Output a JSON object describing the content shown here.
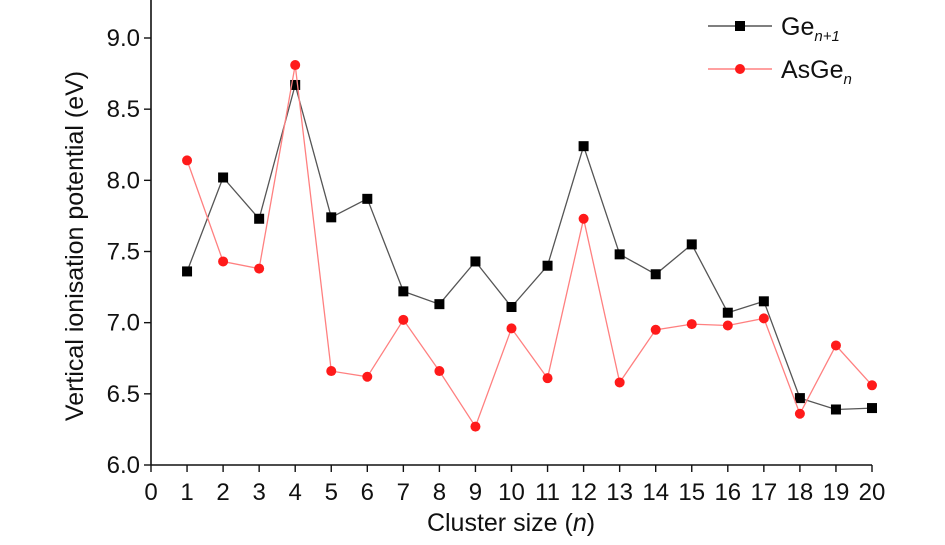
{
  "chart_data": {
    "type": "line",
    "xlabel": "Cluster size (",
    "xlabel_var": "n",
    "xlabel_end": ")",
    "ylabel": "Vertical  ionisation potential (eV)",
    "xlim": [
      0,
      20
    ],
    "ylim": [
      6.0,
      9.3
    ],
    "x_ticks": [
      "0",
      "1",
      "2",
      "3",
      "4",
      "5",
      "6",
      "7",
      "8",
      "9",
      "10",
      "11",
      "12",
      "13",
      "14",
      "15",
      "16",
      "17",
      "18",
      "19",
      "20"
    ],
    "y_ticks": [
      "6.0",
      "6.5",
      "7.0",
      "7.5",
      "8.0",
      "8.5",
      "9.0"
    ],
    "y_tick_values": [
      6.0,
      6.5,
      7.0,
      7.5,
      8.0,
      8.5,
      9.0
    ],
    "x": [
      1,
      2,
      3,
      4,
      5,
      6,
      7,
      8,
      9,
      10,
      11,
      12,
      13,
      14,
      15,
      16,
      17,
      18,
      19,
      20
    ],
    "legend_position": "top-right",
    "grid": false,
    "series": [
      {
        "name_base": "Ge",
        "name_sub": "n+1",
        "color": "#555555",
        "marker_color": "#000000",
        "marker": "square",
        "values": [
          7.36,
          8.02,
          7.73,
          8.67,
          7.74,
          7.87,
          7.22,
          7.13,
          7.43,
          7.11,
          7.4,
          8.24,
          7.48,
          7.34,
          7.55,
          7.07,
          7.15,
          6.47,
          6.39,
          6.4
        ]
      },
      {
        "name_base": "AsGe",
        "name_sub": "n",
        "color": "#ff8080",
        "marker_color": "#ff1a1a",
        "marker": "circle",
        "values": [
          8.14,
          7.43,
          7.38,
          8.81,
          6.66,
          6.62,
          7.02,
          6.66,
          6.27,
          6.96,
          6.61,
          7.73,
          6.58,
          6.95,
          6.99,
          6.98,
          7.03,
          6.36,
          6.84,
          6.56
        ]
      }
    ]
  }
}
